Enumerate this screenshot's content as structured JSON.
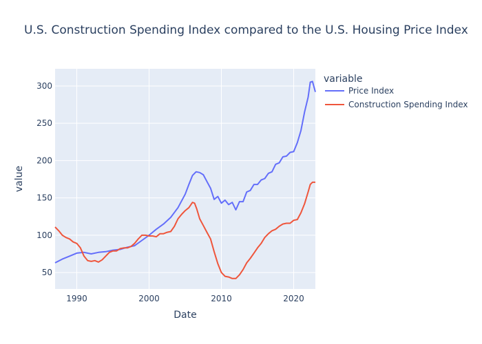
{
  "chart_data": {
    "type": "line",
    "title": "U.S. Construction Spending Index compared to the U.S. Housing Price Index",
    "xlabel": "Date",
    "ylabel": "value",
    "xlim": [
      1987.0,
      2023.0
    ],
    "ylim": [
      28,
      323
    ],
    "x_ticks": [
      1990,
      2000,
      2010,
      2020
    ],
    "y_ticks": [
      50,
      100,
      150,
      200,
      250,
      300
    ],
    "grid": true,
    "legend": {
      "title": "variable",
      "placement": "right"
    },
    "series": [
      {
        "name": "Price Index",
        "color": "#636efa",
        "x": [
          1987.0,
          1988.0,
          1989.0,
          1990.0,
          1991.0,
          1992.0,
          1993.0,
          1994.0,
          1995.0,
          1996.0,
          1997.0,
          1998.0,
          1999.0,
          2000.0,
          2001.0,
          2002.0,
          2003.0,
          2004.0,
          2005.0,
          2005.5,
          2006.0,
          2006.5,
          2007.0,
          2007.5,
          2008.0,
          2008.5,
          2009.0,
          2009.5,
          2010.0,
          2010.5,
          2011.0,
          2011.5,
          2012.0,
          2012.5,
          2013.0,
          2013.5,
          2014.0,
          2014.5,
          2015.0,
          2015.5,
          2016.0,
          2016.5,
          2017.0,
          2017.5,
          2018.0,
          2018.5,
          2019.0,
          2019.5,
          2020.0,
          2020.5,
          2021.0,
          2021.5,
          2022.0,
          2022.3,
          2022.6,
          2023.0
        ],
        "values": [
          63,
          68,
          72,
          76,
          77,
          75,
          77,
          78,
          80,
          81,
          84,
          86,
          93,
          100,
          108,
          115,
          124,
          137,
          155,
          168,
          180,
          185,
          184,
          181,
          172,
          163,
          148,
          152,
          143,
          147,
          141,
          144,
          134,
          145,
          145,
          158,
          160,
          168,
          168,
          174,
          176,
          183,
          185,
          195,
          197,
          205,
          206,
          211,
          212,
          224,
          240,
          265,
          285,
          305,
          306,
          292
        ]
      },
      {
        "name": "Construction Spending Index",
        "color": "#ef553b",
        "x": [
          1987.0,
          1987.5,
          1988.0,
          1988.5,
          1989.0,
          1989.5,
          1990.0,
          1990.5,
          1991.0,
          1991.5,
          1992.0,
          1992.5,
          1993.0,
          1993.5,
          1994.0,
          1994.5,
          1995.0,
          1995.5,
          1996.0,
          1996.5,
          1997.0,
          1997.5,
          1998.0,
          1998.5,
          1999.0,
          1999.5,
          2000.0,
          2000.5,
          2001.0,
          2001.5,
          2002.0,
          2002.5,
          2003.0,
          2003.5,
          2004.0,
          2004.5,
          2005.0,
          2005.5,
          2006.0,
          2006.3,
          2006.6,
          2007.0,
          2007.5,
          2008.0,
          2008.5,
          2009.0,
          2009.5,
          2010.0,
          2010.5,
          2011.0,
          2011.5,
          2012.0,
          2012.5,
          2013.0,
          2013.5,
          2014.0,
          2014.5,
          2015.0,
          2015.5,
          2016.0,
          2016.5,
          2017.0,
          2017.5,
          2018.0,
          2018.5,
          2019.0,
          2019.5,
          2020.0,
          2020.5,
          2021.0,
          2021.5,
          2022.0,
          2022.3,
          2022.6,
          2023.0
        ],
        "values": [
          111,
          106,
          100,
          97,
          95,
          91,
          89,
          83,
          72,
          66,
          65,
          66,
          64,
          67,
          72,
          77,
          79,
          79,
          82,
          83,
          83,
          85,
          89,
          95,
          100,
          100,
          99,
          99,
          98,
          102,
          102,
          104,
          105,
          112,
          122,
          128,
          133,
          137,
          144,
          143,
          135,
          122,
          113,
          104,
          95,
          78,
          62,
          50,
          45,
          44,
          42,
          42,
          47,
          54,
          63,
          69,
          76,
          83,
          89,
          97,
          102,
          106,
          108,
          112,
          115,
          116,
          116,
          120,
          121,
          130,
          142,
          158,
          168,
          171,
          171
        ]
      }
    ]
  }
}
